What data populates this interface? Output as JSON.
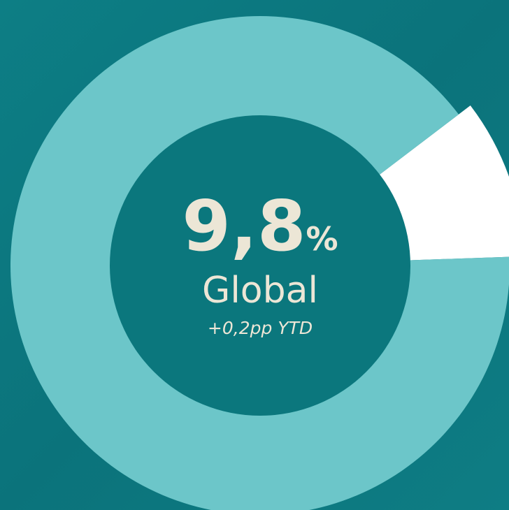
{
  "chart_data": {
    "type": "donut",
    "values": [
      9.8,
      90.2
    ],
    "colors": [
      "#ffffff",
      "#6cc6c9"
    ],
    "center_value_label": "9,8",
    "center_unit": "%",
    "label": "Global",
    "annotation": "+0,2pp YTD"
  }
}
